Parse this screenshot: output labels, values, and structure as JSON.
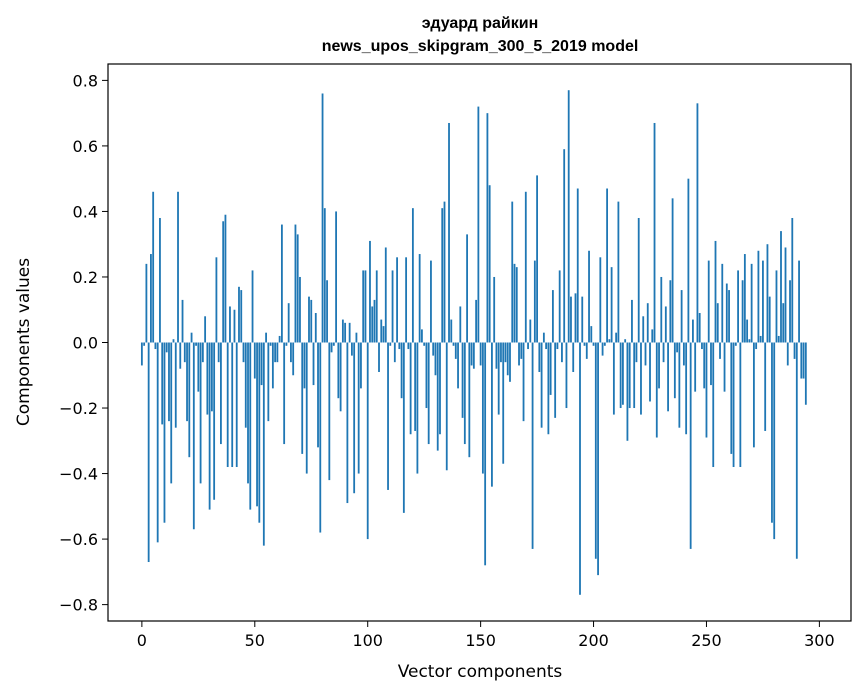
{
  "chart_data": {
    "type": "bar",
    "title": "эдуард райкин",
    "subtitle": "news_upos_skipgram_300_5_2019 model",
    "xlabel": "Vector components",
    "ylabel": "Components values",
    "xlim": [
      -15,
      314
    ],
    "ylim": [
      -0.85,
      0.85
    ],
    "xticks": [
      0,
      50,
      100,
      150,
      200,
      250,
      300
    ],
    "yticks": [
      -0.8,
      -0.6,
      -0.4,
      -0.2,
      0.0,
      0.2,
      0.4,
      0.6,
      0.8
    ],
    "ytick_labels": [
      "−0.8",
      "−0.6",
      "−0.4",
      "−0.2",
      "0.0",
      "0.2",
      "0.4",
      "0.6",
      "0.8"
    ],
    "bar_color": "#1f77b4",
    "grid": false,
    "legend": "none",
    "x_start": 0,
    "values": [
      -0.07,
      -0.01,
      0.24,
      -0.67,
      0.27,
      0.46,
      -0.02,
      -0.61,
      0.38,
      -0.25,
      -0.55,
      -0.03,
      -0.24,
      -0.43,
      0.01,
      -0.26,
      0.46,
      -0.08,
      0.13,
      -0.06,
      -0.24,
      -0.35,
      0.03,
      -0.57,
      -0.01,
      -0.15,
      -0.43,
      -0.06,
      0.08,
      -0.22,
      -0.51,
      -0.21,
      -0.48,
      0.26,
      -0.06,
      -0.31,
      0.37,
      0.39,
      -0.38,
      0.11,
      -0.38,
      0.1,
      -0.38,
      0.17,
      0.16,
      -0.06,
      -0.26,
      -0.43,
      -0.51,
      0.22,
      -0.11,
      -0.5,
      -0.55,
      -0.13,
      -0.62,
      0.03,
      -0.24,
      -0.01,
      -0.14,
      -0.06,
      -0.06,
      0.02,
      0.36,
      -0.31,
      -0.01,
      0.12,
      -0.06,
      -0.1,
      0.36,
      0.33,
      0.2,
      -0.34,
      -0.14,
      -0.4,
      0.14,
      0.13,
      -0.13,
      0.09,
      -0.32,
      -0.58,
      0.76,
      0.41,
      0.19,
      -0.42,
      -0.03,
      -0.01,
      0.4,
      -0.17,
      -0.21,
      0.07,
      0.06,
      -0.49,
      0.06,
      -0.04,
      -0.46,
      0.03,
      -0.4,
      -0.14,
      0.22,
      0.22,
      -0.6,
      0.31,
      0.11,
      0.13,
      0.22,
      -0.09,
      0.07,
      0.05,
      0.29,
      -0.45,
      -0.01,
      0.22,
      -0.06,
      0.26,
      -0.02,
      -0.17,
      -0.52,
      0.26,
      -0.02,
      -0.28,
      0.41,
      -0.27,
      -0.4,
      0.27,
      0.04,
      -0.01,
      -0.2,
      -0.31,
      0.25,
      -0.04,
      -0.1,
      -0.33,
      -0.28,
      0.41,
      0.43,
      -0.39,
      0.67,
      0.07,
      -0.01,
      -0.05,
      -0.14,
      0.11,
      -0.23,
      -0.31,
      0.33,
      -0.35,
      -0.07,
      -0.08,
      0.13,
      0.72,
      -0.07,
      -0.4,
      -0.68,
      0.7,
      0.48,
      -0.44,
      0.2,
      -0.08,
      -0.22,
      -0.06,
      -0.37,
      -0.06,
      -0.1,
      -0.12,
      0.43,
      0.24,
      0.23,
      -0.07,
      -0.05,
      -0.24,
      0.46,
      -0.02,
      0.07,
      -0.63,
      0.25,
      0.51,
      -0.09,
      -0.26,
      0.03,
      -0.02,
      -0.28,
      -0.16,
      0.16,
      -0.23,
      -0.02,
      0.22,
      -0.06,
      0.59,
      -0.2,
      0.77,
      0.14,
      -0.09,
      0.15,
      0.47,
      -0.77,
      0.14,
      -0.01,
      -0.05,
      0.28,
      0.05,
      -0.01,
      -0.66,
      -0.71,
      0.26,
      -0.04,
      -0.01,
      0.47,
      0.01,
      0.23,
      -0.22,
      0.03,
      0.43,
      -0.2,
      -0.19,
      0.01,
      -0.3,
      -0.2,
      0.13,
      -0.2,
      -0.06,
      0.38,
      -0.22,
      0.08,
      -0.07,
      0.12,
      -0.18,
      0.04,
      0.67,
      -0.29,
      -0.14,
      0.2,
      -0.06,
      0.11,
      -0.21,
      0.19,
      0.44,
      -0.17,
      -0.03,
      -0.26,
      0.16,
      -0.07,
      -0.28,
      0.5,
      -0.63,
      0.07,
      -0.15,
      0.73,
      0.09,
      -0.02,
      -0.14,
      -0.29,
      0.25,
      -0.13,
      -0.38,
      0.31,
      0.12,
      -0.05,
      0.24,
      -0.15,
      0.18,
      0.16,
      -0.34,
      -0.38,
      -0.01,
      0.22,
      -0.38,
      0.19,
      0.27,
      0.07,
      0.01,
      0.24,
      -0.32,
      -0.02,
      0.28,
      0.02,
      0.25,
      -0.27,
      0.3,
      0.14,
      -0.55,
      -0.6,
      0.22,
      0.02,
      0.34,
      0.12,
      0.29,
      -0.07,
      0.19,
      0.38,
      -0.05,
      -0.66,
      0.25,
      -0.11,
      -0.11,
      -0.19
    ]
  }
}
